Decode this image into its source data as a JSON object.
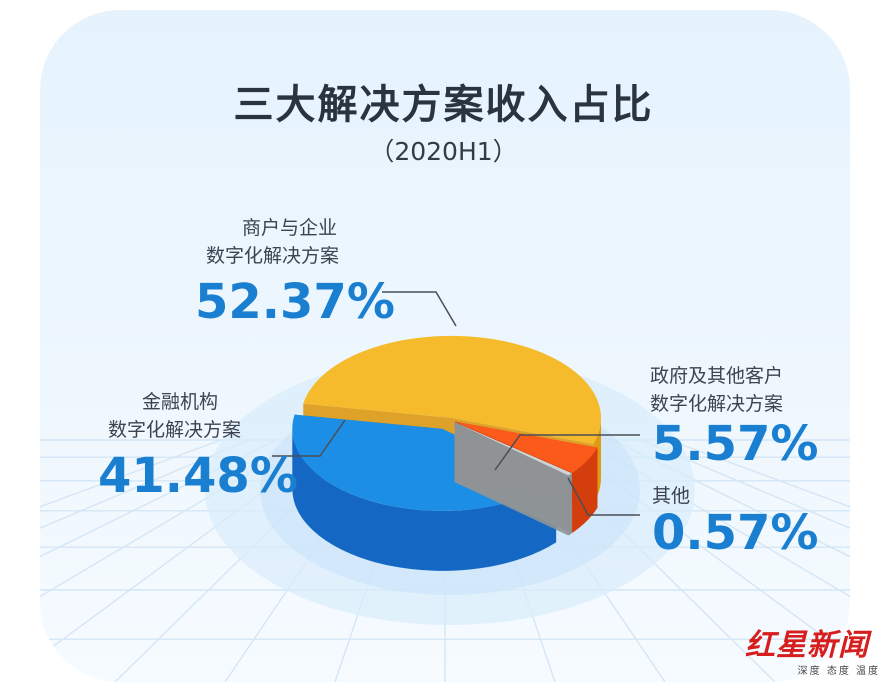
{
  "title": "三大解决方案收入占比",
  "subtitle": "（2020H1）",
  "chart_data": {
    "type": "pie",
    "title": "三大解决方案收入占比",
    "subtitle": "（2020H1）",
    "slices": [
      {
        "label_line1": "商户与企业",
        "label_line2": "数字化解决方案",
        "value": 52.37,
        "display": "52.37%",
        "color": "#f5bb2c",
        "side": "#e09a12"
      },
      {
        "label_line1": "政府及其他客户",
        "label_line2": "数字化解决方案",
        "value": 5.57,
        "display": "5.57%",
        "color": "#fb5a1a",
        "side": "#d43e0c"
      },
      {
        "label_line1": "其他",
        "label_line2": "",
        "value": 0.57,
        "display": "0.57%",
        "color": "#cfd3d6",
        "side": "#8e9397"
      },
      {
        "label_line1": "金融机构",
        "label_line2": "数字化解决方案",
        "value": 41.48,
        "display": "41.48%",
        "color": "#1d8ee6",
        "side": "#1567c4"
      }
    ]
  },
  "brand": {
    "name": "红星新闻",
    "tagline": "深度 态度 温度"
  }
}
